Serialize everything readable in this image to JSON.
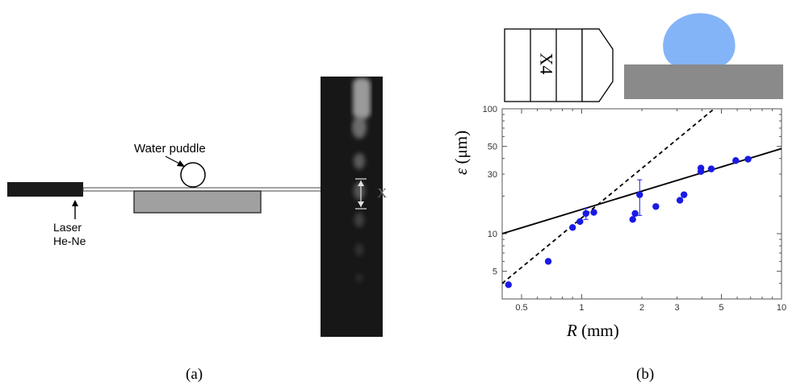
{
  "figure": {
    "panel_a": {
      "caption": "(a)",
      "laser_label": "Laser",
      "laser_sub": "He-Ne",
      "puddle_label": "Water puddle",
      "spot_label": "X"
    },
    "panel_b": {
      "caption": "(b)",
      "objective_label": "X4",
      "colors": {
        "drop": "#84b4f8",
        "substrate": "#8a8a8a",
        "points": "#1a1ae6"
      }
    }
  },
  "chart_data": {
    "type": "scatter",
    "xscale": "log",
    "yscale": "log",
    "xlabel_var": "R",
    "xlabel_unit": " (mm)",
    "ylabel_var": "ε",
    "ylabel_unit": " (μm)",
    "xlim": [
      0.4,
      10
    ],
    "ylim": [
      3,
      100
    ],
    "xticks": [
      0.5,
      1,
      2,
      3,
      5,
      10
    ],
    "yticks": [
      5,
      10,
      30,
      50,
      100
    ],
    "points": [
      {
        "x": 0.43,
        "y": 3.9
      },
      {
        "x": 0.68,
        "y": 6.0
      },
      {
        "x": 0.9,
        "y": 11.2
      },
      {
        "x": 0.98,
        "y": 12.5
      },
      {
        "x": 1.05,
        "y": 14.5,
        "err": 1.5
      },
      {
        "x": 1.15,
        "y": 14.8
      },
      {
        "x": 1.8,
        "y": 13.0
      },
      {
        "x": 1.85,
        "y": 14.5
      },
      {
        "x": 1.95,
        "y": 20.5,
        "err": 6.5
      },
      {
        "x": 2.35,
        "y": 16.5
      },
      {
        "x": 3.1,
        "y": 18.5
      },
      {
        "x": 3.25,
        "y": 20.5
      },
      {
        "x": 3.95,
        "y": 31.5
      },
      {
        "x": 3.95,
        "y": 33.5
      },
      {
        "x": 4.45,
        "y": 33.0
      },
      {
        "x": 5.9,
        "y": 38.5
      },
      {
        "x": 6.8,
        "y": 39.5
      }
    ],
    "lines": [
      {
        "style": "solid",
        "x": [
          0.4,
          10
        ],
        "y": [
          10,
          48
        ]
      },
      {
        "style": "dashed",
        "x": [
          0.4,
          4.6
        ],
        "y": [
          4.0,
          100
        ]
      }
    ]
  }
}
